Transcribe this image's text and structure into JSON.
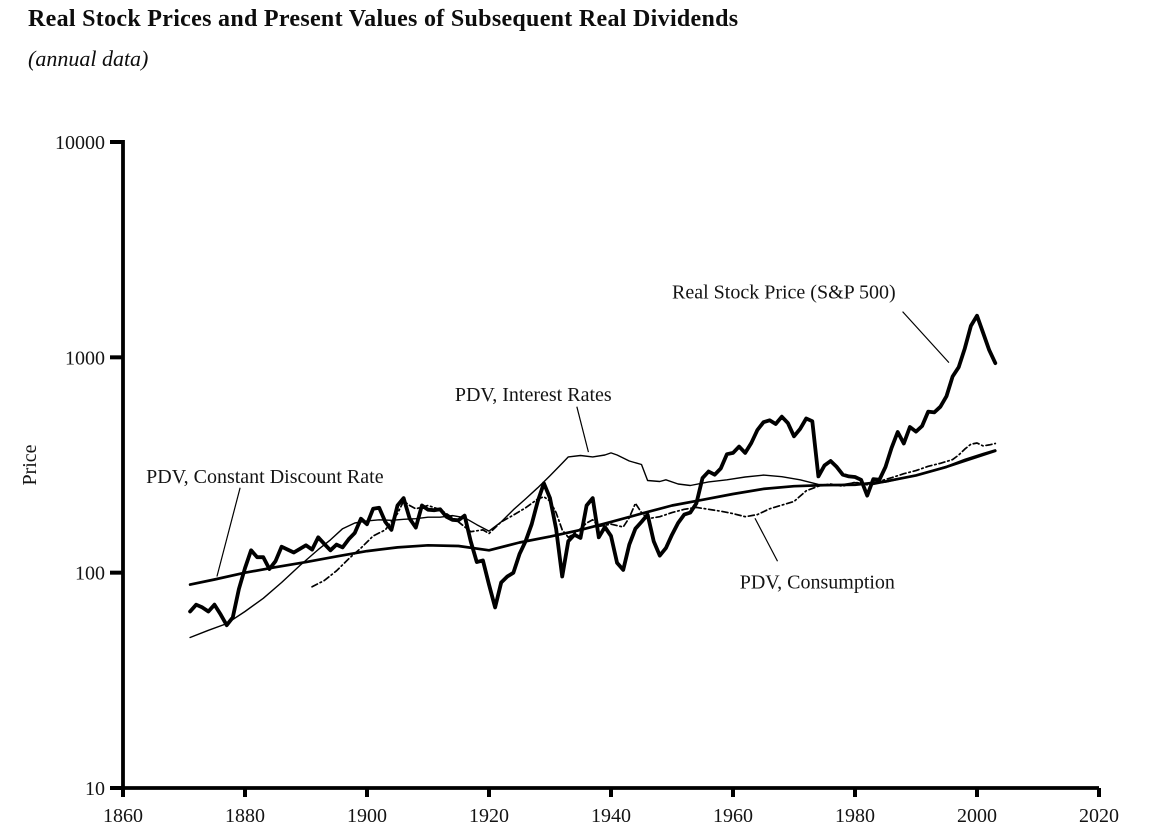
{
  "page": {
    "kind": "statistical figure",
    "background": "#ffffff",
    "ink_color": "#000000",
    "text_color": "#141414"
  },
  "chart_data": {
    "type": "line",
    "title": "Real Stock Prices and Present Values of Subsequent Real Dividends",
    "subtitle": "(annual data)",
    "xlabel": "",
    "ylabel": "Price",
    "x_range": [
      1860,
      2020
    ],
    "y_range": [
      10,
      10000
    ],
    "y_scale": "log",
    "x_ticks": [
      1860,
      1880,
      1900,
      1920,
      1940,
      1960,
      1980,
      2000,
      2020
    ],
    "y_ticks": [
      10,
      100,
      1000,
      10000
    ],
    "grid": false,
    "legend_position": "inline-annotations",
    "series": [
      {
        "id": "pdv-consumption",
        "name": "PDV, Consumption",
        "style": "dash-dot",
        "points": [
          [
            1891,
            86
          ],
          [
            1893,
            92
          ],
          [
            1895,
            102
          ],
          [
            1897,
            116
          ],
          [
            1899,
            130
          ],
          [
            1901,
            148
          ],
          [
            1903,
            158
          ],
          [
            1905,
            188
          ],
          [
            1906,
            215
          ],
          [
            1907,
            205
          ],
          [
            1908,
            198
          ],
          [
            1910,
            205
          ],
          [
            1912,
            196
          ],
          [
            1913,
            188
          ],
          [
            1915,
            172
          ],
          [
            1917,
            155
          ],
          [
            1919,
            158
          ],
          [
            1920,
            152
          ],
          [
            1922,
            172
          ],
          [
            1924,
            185
          ],
          [
            1926,
            200
          ],
          [
            1928,
            220
          ],
          [
            1929,
            225
          ],
          [
            1930,
            215
          ],
          [
            1931,
            190
          ],
          [
            1932,
            158
          ],
          [
            1933,
            146
          ],
          [
            1934,
            152
          ],
          [
            1935,
            160
          ],
          [
            1936,
            170
          ],
          [
            1937,
            176
          ],
          [
            1938,
            164
          ],
          [
            1940,
            168
          ],
          [
            1942,
            163
          ],
          [
            1943,
            180
          ],
          [
            1944,
            210
          ],
          [
            1945,
            190
          ],
          [
            1946,
            178
          ],
          [
            1948,
            182
          ],
          [
            1950,
            190
          ],
          [
            1952,
            197
          ],
          [
            1954,
            201
          ],
          [
            1956,
            197
          ],
          [
            1958,
            193
          ],
          [
            1960,
            188
          ],
          [
            1962,
            182
          ],
          [
            1964,
            186
          ],
          [
            1966,
            198
          ],
          [
            1968,
            206
          ],
          [
            1970,
            214
          ],
          [
            1972,
            240
          ],
          [
            1974,
            252
          ],
          [
            1976,
            258
          ],
          [
            1978,
            252
          ],
          [
            1980,
            263
          ],
          [
            1982,
            256
          ],
          [
            1984,
            266
          ],
          [
            1986,
            276
          ],
          [
            1988,
            288
          ],
          [
            1990,
            298
          ],
          [
            1992,
            312
          ],
          [
            1994,
            322
          ],
          [
            1996,
            335
          ],
          [
            1997,
            352
          ],
          [
            1998,
            375
          ],
          [
            1999,
            395
          ],
          [
            2000,
            400
          ],
          [
            2001,
            388
          ],
          [
            2002,
            392
          ],
          [
            2003,
            398
          ]
        ]
      },
      {
        "id": "pdv-interest-rates",
        "name": "PDV, Interest Rates",
        "style": "thin-solid",
        "points": [
          [
            1871,
            50
          ],
          [
            1874,
            54
          ],
          [
            1877,
            58
          ],
          [
            1880,
            66
          ],
          [
            1883,
            76
          ],
          [
            1886,
            90
          ],
          [
            1889,
            108
          ],
          [
            1892,
            128
          ],
          [
            1894,
            142
          ],
          [
            1896,
            160
          ],
          [
            1898,
            170
          ],
          [
            1900,
            174
          ],
          [
            1902,
            176
          ],
          [
            1904,
            175
          ],
          [
            1906,
            177
          ],
          [
            1908,
            178
          ],
          [
            1910,
            181
          ],
          [
            1912,
            181
          ],
          [
            1914,
            184
          ],
          [
            1916,
            180
          ],
          [
            1918,
            167
          ],
          [
            1920,
            156
          ],
          [
            1922,
            172
          ],
          [
            1924,
            196
          ],
          [
            1926,
            220
          ],
          [
            1928,
            248
          ],
          [
            1930,
            282
          ],
          [
            1932,
            322
          ],
          [
            1933,
            345
          ],
          [
            1935,
            350
          ],
          [
            1937,
            345
          ],
          [
            1939,
            352
          ],
          [
            1940,
            360
          ],
          [
            1941,
            352
          ],
          [
            1943,
            330
          ],
          [
            1945,
            318
          ],
          [
            1946,
            268
          ],
          [
            1948,
            265
          ],
          [
            1949,
            270
          ],
          [
            1951,
            258
          ],
          [
            1953,
            254
          ],
          [
            1956,
            264
          ],
          [
            1959,
            270
          ],
          [
            1962,
            278
          ],
          [
            1965,
            284
          ],
          [
            1968,
            279
          ],
          [
            1971,
            270
          ],
          [
            1974,
            257
          ],
          [
            1977,
            254
          ],
          [
            1980,
            262
          ],
          [
            1983,
            257
          ],
          [
            1986,
            267
          ],
          [
            1989,
            279
          ],
          [
            1992,
            294
          ],
          [
            1995,
            312
          ],
          [
            1998,
            336
          ],
          [
            2001,
            358
          ],
          [
            2003,
            372
          ]
        ]
      },
      {
        "id": "pdv-constant-discount-rate",
        "name": "PDV, Constant Discount Rate",
        "style": "medium-solid",
        "points": [
          [
            1871,
            88
          ],
          [
            1875,
            93
          ],
          [
            1880,
            100
          ],
          [
            1885,
            106
          ],
          [
            1890,
            112
          ],
          [
            1895,
            119
          ],
          [
            1900,
            126
          ],
          [
            1905,
            131
          ],
          [
            1910,
            134
          ],
          [
            1915,
            133
          ],
          [
            1920,
            127
          ],
          [
            1925,
            138
          ],
          [
            1930,
            147
          ],
          [
            1935,
            158
          ],
          [
            1940,
            172
          ],
          [
            1945,
            188
          ],
          [
            1950,
            205
          ],
          [
            1955,
            218
          ],
          [
            1960,
            232
          ],
          [
            1965,
            245
          ],
          [
            1970,
            252
          ],
          [
            1975,
            255
          ],
          [
            1980,
            256
          ],
          [
            1985,
            265
          ],
          [
            1990,
            283
          ],
          [
            1995,
            310
          ],
          [
            2000,
            345
          ],
          [
            2003,
            368
          ]
        ]
      },
      {
        "id": "real-stock-price",
        "name": "Real Stock Price (S&P 500)",
        "style": "bold-solid",
        "x_start": 1871,
        "x_step": 1,
        "values": [
          66,
          71,
          69,
          66,
          71,
          64,
          57,
          62,
          84,
          105,
          127,
          118,
          118,
          104,
          113,
          132,
          128,
          124,
          129,
          134,
          128,
          146,
          136,
          127,
          135,
          131,
          143,
          153,
          178,
          168,
          198,
          200,
          172,
          158,
          205,
          222,
          178,
          162,
          205,
          196,
          195,
          197,
          182,
          176,
          175,
          184,
          140,
          112,
          114,
          88,
          69,
          90,
          96,
          100,
          122,
          140,
          168,
          215,
          260,
          222,
          160,
          96,
          140,
          150,
          145,
          205,
          222,
          146,
          163,
          148,
          111,
          103,
          135,
          160,
          172,
          186,
          140,
          120,
          130,
          150,
          170,
          186,
          190,
          210,
          275,
          295,
          285,
          305,
          355,
          360,
          385,
          360,
          400,
          460,
          500,
          510,
          490,
          530,
          495,
          430,
          465,
          520,
          505,
          280,
          315,
          330,
          310,
          285,
          280,
          278,
          270,
          228,
          272,
          270,
          310,
          380,
          450,
          398,
          475,
          452,
          480,
          560,
          555,
          590,
          660,
          815,
          900,
          1100,
          1400,
          1560,
          1300,
          1080,
          940
        ]
      }
    ],
    "annotations": [
      {
        "id": "real-stock-price",
        "text": "Real Stock Price (S&P 500)",
        "text_pos": [
          1950.0,
          2020
        ],
        "line": [
          [
            1987.8,
            1630
          ],
          [
            1995.4,
            945
          ]
        ]
      },
      {
        "id": "pdv-interest-rates",
        "text": "PDV, Interest Rates",
        "text_pos": [
          1914.4,
          674
        ],
        "line": [
          [
            1934.4,
            590
          ],
          [
            1936.3,
            363
          ]
        ]
      },
      {
        "id": "pdv-constant-discount-rate",
        "text": "PDV, Constant Discount Rate",
        "text_pos": [
          1863.8,
          281
        ],
        "line": [
          [
            1879.2,
            248
          ],
          [
            1875.4,
            96
          ]
        ]
      },
      {
        "id": "pdv-consumption",
        "text": "PDV, Consumption",
        "text_pos": [
          1961.1,
          91
        ],
        "line": [
          [
            1963.6,
            179
          ],
          [
            1967.3,
            113
          ]
        ]
      }
    ]
  }
}
